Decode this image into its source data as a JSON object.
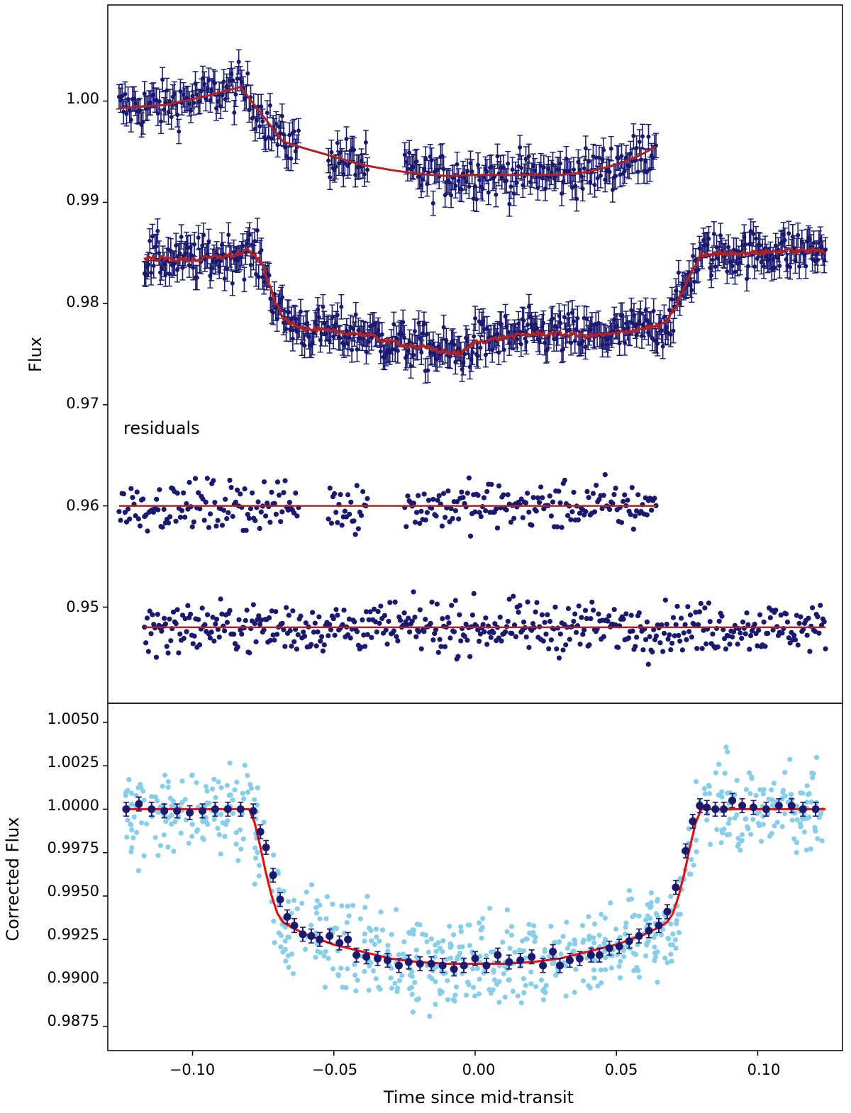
{
  "figure": {
    "xlabel": "Time since mid-transit",
    "x_ticks": [
      "−0.10",
      "−0.05",
      "0.00",
      "0.05",
      "0.10"
    ],
    "xlim": [
      -0.13,
      0.13
    ]
  },
  "top_panel": {
    "ylabel": "Flux",
    "annotation": "residuals",
    "y_ticks": [
      "1.00",
      "0.99",
      "0.98",
      "0.97",
      "0.96",
      "0.95"
    ],
    "ylim": [
      0.9405,
      1.0095
    ]
  },
  "bottom_panel": {
    "ylabel": "Corrected Flux",
    "y_ticks": [
      "1.0050",
      "1.0025",
      "1.0000",
      "0.9975",
      "0.9950",
      "0.9925",
      "0.9900",
      "0.9875"
    ],
    "ylim": [
      0.9861,
      1.0061
    ]
  },
  "colors": {
    "data": "#191970",
    "light_data": "#87ceeb",
    "model_top": "#b22222",
    "model_bottom": "#ff0000",
    "axes": "#000000"
  },
  "chart_data": [
    {
      "type": "scatter",
      "panel": "top",
      "title": "",
      "xlabel": "",
      "ylabel": "Flux",
      "xlim": [
        -0.13,
        0.13
      ],
      "ylim": [
        0.9405,
        1.0095
      ],
      "series": [
        {
          "name": "light curve 1 (with error bars)",
          "x_range": [
            -0.126,
            0.064
          ],
          "baseline": 0.9995,
          "error": 0.0012,
          "points": 360,
          "gaps": [
            [
              -0.062,
              -0.052
            ],
            [
              -0.038,
              -0.025
            ]
          ]
        },
        {
          "name": "model 1",
          "x": [
            -0.126,
            -0.11,
            -0.095,
            -0.083,
            -0.075,
            -0.068,
            -0.06,
            -0.05,
            -0.04,
            -0.03,
            -0.02,
            -0.01,
            0.0,
            0.01,
            0.02,
            0.03,
            0.04,
            0.05,
            0.058,
            0.064
          ],
          "y": [
            0.9993,
            0.9996,
            1.0005,
            1.0014,
            0.9985,
            0.996,
            0.9953,
            0.9945,
            0.9937,
            0.9932,
            0.9928,
            0.9926,
            0.9927,
            0.9927,
            0.9927,
            0.9927,
            0.993,
            0.9937,
            0.9946,
            0.9955
          ]
        },
        {
          "name": "light curve 2 (with error bars)",
          "x_range": [
            -0.117,
            0.124
          ],
          "baseline": 0.9845,
          "error": 0.0012,
          "points": 520
        },
        {
          "name": "model 2",
          "x": [
            -0.117,
            -0.1,
            -0.085,
            -0.08,
            -0.075,
            -0.072,
            -0.068,
            -0.06,
            -0.05,
            -0.04,
            -0.03,
            -0.02,
            -0.01,
            -0.005,
            0.0,
            0.01,
            0.02,
            0.03,
            0.04,
            0.05,
            0.06,
            0.066,
            0.07,
            0.075,
            0.08,
            0.09,
            0.1,
            0.11,
            0.124
          ],
          "y": [
            0.9845,
            0.9843,
            0.9848,
            0.9852,
            0.9838,
            0.981,
            0.9785,
            0.9775,
            0.9772,
            0.977,
            0.9762,
            0.9757,
            0.9752,
            0.975,
            0.9762,
            0.9766,
            0.977,
            0.977,
            0.9768,
            0.977,
            0.9776,
            0.9778,
            0.979,
            0.9822,
            0.9848,
            0.985,
            0.985,
            0.9852,
            0.9852
          ]
        },
        {
          "name": "residuals 1",
          "x_range": [
            -0.126,
            0.064
          ],
          "center": 0.96,
          "spread": 0.0012,
          "points": 360
        },
        {
          "name": "residuals 1 zero line",
          "x": [
            -0.126,
            0.064
          ],
          "y": [
            0.96,
            0.96
          ]
        },
        {
          "name": "residuals 2",
          "x_range": [
            -0.117,
            0.124
          ],
          "center": 0.948,
          "spread": 0.0012,
          "points": 520
        },
        {
          "name": "residuals 2 zero line",
          "x": [
            -0.117,
            0.124
          ],
          "y": [
            0.948,
            0.948
          ]
        }
      ]
    },
    {
      "type": "scatter",
      "panel": "bottom",
      "title": "",
      "xlabel": "Time since mid-transit",
      "ylabel": "Corrected Flux",
      "xlim": [
        -0.13,
        0.13
      ],
      "ylim": [
        0.9861,
        1.0061
      ],
      "series": [
        {
          "name": "unbinned corrected flux",
          "x_range": [
            -0.124,
            0.123
          ],
          "spread": 0.0013,
          "points": 760
        },
        {
          "name": "binned flux",
          "error": 0.0004,
          "x": [
            -0.1235,
            -0.119,
            -0.1145,
            -0.11,
            -0.1055,
            -0.101,
            -0.0965,
            -0.092,
            -0.0875,
            -0.083,
            -0.0785,
            -0.076,
            -0.074,
            -0.0715,
            -0.069,
            -0.0665,
            -0.064,
            -0.061,
            -0.058,
            -0.055,
            -0.0515,
            -0.048,
            -0.045,
            -0.042,
            -0.0385,
            -0.0345,
            -0.031,
            -0.027,
            -0.0235,
            -0.0195,
            -0.0155,
            -0.0115,
            -0.0075,
            -0.004,
            0.0,
            0.004,
            0.008,
            0.012,
            0.016,
            0.02,
            0.024,
            0.0275,
            0.03,
            0.0335,
            0.037,
            0.041,
            0.044,
            0.0475,
            0.051,
            0.0545,
            0.058,
            0.0615,
            0.065,
            0.068,
            0.071,
            0.0745,
            0.077,
            0.0795,
            0.082,
            0.085,
            0.088,
            0.091,
            0.0945,
            0.0985,
            0.103,
            0.1075,
            0.112,
            0.116,
            0.1205
          ],
          "y": [
            1.0,
            1.0003,
            1.0,
            0.9999,
            0.9999,
            0.9998,
            0.9999,
            1.0,
            1.0,
            1.0,
            0.9999,
            0.9987,
            0.9978,
            0.9962,
            0.9948,
            0.9938,
            0.9933,
            0.9928,
            0.9927,
            0.9925,
            0.9927,
            0.9923,
            0.9925,
            0.9916,
            0.9915,
            0.9914,
            0.9913,
            0.991,
            0.9912,
            0.9911,
            0.9911,
            0.991,
            0.9908,
            0.991,
            0.9914,
            0.991,
            0.9916,
            0.9912,
            0.9913,
            0.9915,
            0.991,
            0.9918,
            0.991,
            0.9913,
            0.9914,
            0.9916,
            0.9916,
            0.992,
            0.9921,
            0.9924,
            0.9927,
            0.993,
            0.9933,
            0.9941,
            0.9955,
            0.9976,
            0.9993,
            1.0002,
            1.0001,
            1.0,
            1.0,
            1.0005,
            1.0002,
            1.0001,
            1.0,
            1.0002,
            1.0002,
            1.0,
            1.0
          ]
        },
        {
          "name": "transit model",
          "x": [
            -0.124,
            -0.08,
            -0.078,
            -0.076,
            -0.074,
            -0.072,
            -0.07,
            -0.068,
            -0.065,
            -0.06,
            -0.055,
            -0.05,
            -0.045,
            -0.04,
            -0.035,
            -0.03,
            -0.02,
            -0.01,
            0.0,
            0.01,
            0.02,
            0.03,
            0.035,
            0.04,
            0.045,
            0.05,
            0.055,
            0.06,
            0.065,
            0.068,
            0.07,
            0.072,
            0.074,
            0.076,
            0.078,
            0.08,
            0.124
          ],
          "y": [
            1.0,
            1.0,
            0.9992,
            0.9978,
            0.9963,
            0.995,
            0.994,
            0.9935,
            0.9932,
            0.9928,
            0.9925,
            0.9922,
            0.992,
            0.9918,
            0.9916,
            0.9914,
            0.9912,
            0.9911,
            0.9911,
            0.9911,
            0.9912,
            0.9914,
            0.9916,
            0.9918,
            0.992,
            0.9922,
            0.9925,
            0.9928,
            0.9932,
            0.9935,
            0.994,
            0.995,
            0.9963,
            0.9978,
            0.9992,
            1.0,
            1.0
          ]
        }
      ]
    }
  ]
}
